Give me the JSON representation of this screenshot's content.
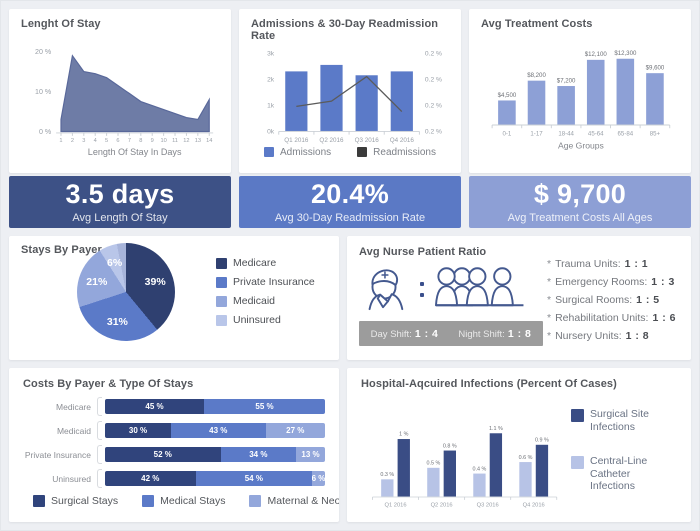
{
  "colors": {
    "page_bg": "#edeff3",
    "card_bg": "#ffffff",
    "title_text": "#54575c",
    "axis_text": "#9aa0a8",
    "value_label_text": "#6d7076",
    "xlabel_text": "#83868c",
    "axis_line": "#cbd0d6",
    "navy": "#2f4070",
    "mid_blue": "#5b7ac8",
    "bar_light_blue": "#8da0d6",
    "light_blue": "#93a7db",
    "lightest_blue": "#b9c6e9",
    "sliver_blue": "#a7b4da",
    "stacked_dark": "#30447c",
    "infection_dark": "#3a4d85",
    "infection_light": "#b7c3e6",
    "area_fill": "#6e7ca6",
    "area_stroke": "#59689a",
    "trend_line": "#5b5b5b",
    "readmissions_swatch": "#3b3b3b",
    "banner_length_of_stay": "#3d5186",
    "banner_readmission": "#5b79c5",
    "banner_treatment": "#8d9fd5",
    "shift_bar_bg": "#9c9c9c",
    "icon_stroke": "#44598f"
  },
  "chart_data": [
    {
      "id": "length_of_stay",
      "type": "area",
      "title": "Lenght Of Stay",
      "xlabel": "Length Of Stay In Days",
      "x": [
        "1",
        "2",
        "3",
        "4",
        "5",
        "6",
        "7",
        "8",
        "9",
        "10",
        "11",
        "12",
        "13",
        "14"
      ],
      "values": [
        3,
        19,
        15,
        14.5,
        13.5,
        11.5,
        9.5,
        7.5,
        6.5,
        5.5,
        4.5,
        3.5,
        3,
        8
      ],
      "ylim": [
        0,
        22
      ],
      "yticks": [
        "0 %",
        "10 %",
        "20 %"
      ],
      "ytick_values": [
        0,
        10,
        20
      ]
    },
    {
      "id": "admissions",
      "type": "bar-line",
      "title": "Admissions & 30-Day Readmission Rate",
      "categories": [
        "Q1 2016",
        "Q2 2016",
        "Q3 2016",
        "Q4 2016"
      ],
      "series": [
        {
          "name": "Admissions",
          "type": "bar",
          "values": [
            2300,
            2550,
            2150,
            2300
          ]
        },
        {
          "name": "Readmissions",
          "type": "line",
          "values_left_axis_scale": [
            950,
            1150,
            2100,
            750
          ]
        }
      ],
      "ylim": [
        0,
        3000
      ],
      "yticks_left": [
        "0k",
        "1k",
        "2k",
        "3k"
      ],
      "ytick_values_left": [
        0,
        1000,
        2000,
        3000
      ],
      "yticks_right": [
        "0.2 %",
        "0.2 %",
        "0.2 %",
        "0.2 %"
      ]
    },
    {
      "id": "treatment_costs",
      "type": "bar",
      "title": "Avg Treatment Costs",
      "xlabel": "Age Groups",
      "categories": [
        "0-1",
        "1-17",
        "18-44",
        "45-64",
        "65-84",
        "85+"
      ],
      "values": [
        4500,
        8200,
        7200,
        12100,
        12300,
        9600
      ],
      "bar_labels": [
        "$4,500",
        "$8,200",
        "$7,200",
        "$12,100",
        "$12,300",
        "$9,600"
      ],
      "ylim": [
        0,
        13500
      ]
    },
    {
      "id": "stays_by_payer",
      "type": "pie",
      "title": "Stays By Payer",
      "slices": [
        {
          "label": "Medicare",
          "pct": 39,
          "display": "39%"
        },
        {
          "label": "Private Insurance",
          "pct": 31,
          "display": "31%"
        },
        {
          "label": "Medicaid",
          "pct": 21,
          "display": "21%"
        },
        {
          "label": "Uninsured",
          "pct": 6,
          "display": "6%"
        },
        {
          "label": "",
          "pct": 3,
          "display": ""
        }
      ]
    },
    {
      "id": "costs_by_payer",
      "type": "stacked-bar-horizontal",
      "title": "Costs By Payer & Type Of Stays",
      "categories": [
        "Medicare",
        "Medicaid",
        "Private Insurance",
        "Uninsured"
      ],
      "series": [
        {
          "name": "Surgical Stays",
          "values": [
            45,
            30,
            52,
            42
          ],
          "labels": [
            "45 %",
            "30 %",
            "52 %",
            "42 %"
          ]
        },
        {
          "name": "Medical Stays",
          "values": [
            55,
            43,
            34,
            54
          ],
          "labels": [
            "55 %",
            "43 %",
            "34 %",
            "54 %"
          ]
        },
        {
          "name": "Maternal & Neonatal Stays",
          "values": [
            0,
            27,
            13,
            6
          ],
          "labels": [
            "",
            "27 %",
            "13 %",
            "6 %"
          ]
        }
      ]
    },
    {
      "id": "infections",
      "type": "grouped-bar",
      "title": "Hospital-Aqcuired Infections (Percent Of Cases)",
      "categories": [
        "Q1 2016",
        "Q2 2016",
        "Q3 2016",
        "Q4 2016"
      ],
      "series": [
        {
          "name": "Central-Line Catheter Infections",
          "values": [
            0.3,
            0.5,
            0.4,
            0.6
          ],
          "labels": [
            "0.3 %",
            "0.5 %",
            "0.4 %",
            "0.6 %"
          ]
        },
        {
          "name": "Surgical Site Infections",
          "values": [
            1,
            0.8,
            1.1,
            0.9
          ],
          "labels": [
            "1 %",
            "0.8 %",
            "1.1 %",
            "0.9 %"
          ]
        }
      ],
      "ylim": [
        0,
        1.2
      ]
    }
  ],
  "panels": {
    "length_of_stay": {
      "kpi_value": "3.5 days",
      "kpi_label": "Avg Length Of Stay"
    },
    "admissions": {
      "kpi_value": "20.4%",
      "kpi_label": "Avg 30-Day Readmission Rate"
    },
    "treatment_costs": {
      "kpi_value": "$ 9,700",
      "kpi_label": "Avg Treatment Costs All Ages"
    },
    "nurse_ratio": {
      "title": "Avg Nurse Patient Ratio",
      "shifts": [
        {
          "label": "Day Shift:",
          "value": "1 : 4"
        },
        {
          "label": "Night Shift:",
          "value": "1 : 8"
        }
      ],
      "units": [
        {
          "bullet": "*",
          "label": "Trauma Units:",
          "value": "1 : 1"
        },
        {
          "bullet": "*",
          "label": "Emergency Rooms:",
          "value": "1 : 3"
        },
        {
          "bullet": "*",
          "label": "Surgical Rooms:",
          "value": "1 : 5"
        },
        {
          "bullet": "*",
          "label": "Rehabilitation Units:",
          "value": "1 : 6"
        },
        {
          "bullet": "*",
          "label": "Nursery Units:",
          "value": "1 : 8"
        }
      ]
    }
  }
}
